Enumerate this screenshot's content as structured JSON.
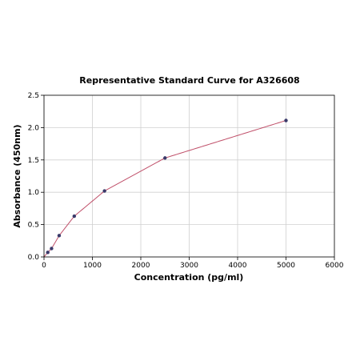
{
  "chart_data": {
    "type": "scatter",
    "title": "Representative Standard Curve for A326608",
    "xlabel": "Concentration (pg/ml)",
    "ylabel": "Absorbance (450nm)",
    "xlim": [
      0,
      6000
    ],
    "ylim": [
      0,
      2.5
    ],
    "xticks": [
      "0",
      "1000",
      "2000",
      "3000",
      "4000",
      "5000",
      "6000"
    ],
    "yticks": [
      "0.0",
      "0.5",
      "1.0",
      "1.5",
      "2.0",
      "2.5"
    ],
    "grid": true,
    "series": [
      {
        "points": [
          {
            "x": 78,
            "y": 0.07
          },
          {
            "x": 156,
            "y": 0.13
          },
          {
            "x": 313,
            "y": 0.33
          },
          {
            "x": 625,
            "y": 0.63
          },
          {
            "x": 1250,
            "y": 1.02
          },
          {
            "x": 2500,
            "y": 1.53
          },
          {
            "x": 5000,
            "y": 2.11
          }
        ]
      }
    ],
    "colors": {
      "points": "#3a3a6a",
      "fit_curve": "#c0506a"
    }
  }
}
